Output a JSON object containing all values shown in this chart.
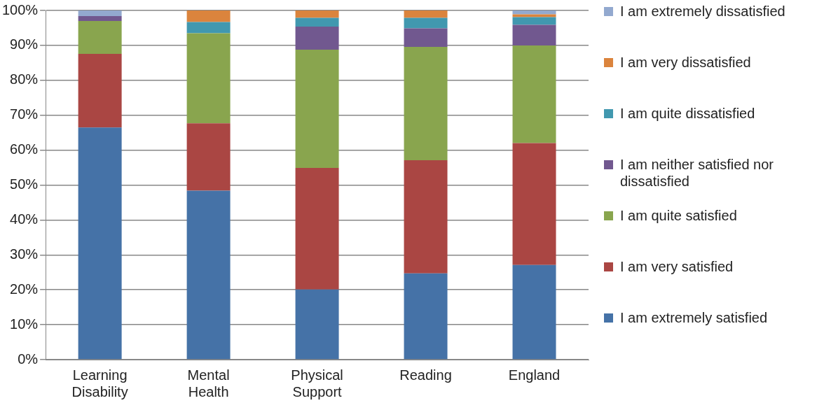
{
  "chart_data": {
    "type": "bar",
    "stacked": true,
    "categories": [
      "Learning Disability",
      "Mental Health",
      "Physical Support",
      "Reading",
      "England"
    ],
    "series": [
      {
        "name": "I am extremely satisfied",
        "color": "#4572a7",
        "values": [
          66.5,
          48.4,
          20.1,
          24.7,
          27.1
        ]
      },
      {
        "name": "I am very satisfied",
        "color": "#aa4643",
        "values": [
          21.1,
          19.3,
          34.8,
          32.4,
          34.9
        ]
      },
      {
        "name": "I am quite satisfied",
        "color": "#89a54e",
        "values": [
          9.4,
          25.8,
          33.9,
          32.5,
          28.0
        ]
      },
      {
        "name": "I am neither satisfied nor dissatisfied",
        "color": "#71588f",
        "values": [
          1.4,
          0,
          6.6,
          5.3,
          5.9
        ]
      },
      {
        "name": "I am quite dissatisfied",
        "color": "#4198af",
        "values": [
          0,
          3.2,
          2.5,
          3.0,
          2.2
        ]
      },
      {
        "name": "I am very dissatisfied",
        "color": "#db843d",
        "values": [
          0,
          3.3,
          2.1,
          2.1,
          0.8
        ]
      },
      {
        "name": "I am extremely dissatisfied",
        "color": "#93a9cf",
        "values": [
          1.6,
          0,
          0,
          0,
          1.1
        ]
      }
    ],
    "ylim": [
      0,
      100
    ],
    "yticks": [
      {
        "value": 0,
        "label": "0%"
      },
      {
        "value": 10,
        "label": "10%"
      },
      {
        "value": 20,
        "label": "20%"
      },
      {
        "value": 30,
        "label": "30%"
      },
      {
        "value": 40,
        "label": "40%"
      },
      {
        "value": 50,
        "label": "50%"
      },
      {
        "value": 60,
        "label": "60%"
      },
      {
        "value": 70,
        "label": "70%"
      },
      {
        "value": 80,
        "label": "80%"
      },
      {
        "value": 90,
        "label": "90%"
      },
      {
        "value": 100,
        "label": "100%"
      }
    ],
    "grid": "y",
    "legend": "right"
  }
}
